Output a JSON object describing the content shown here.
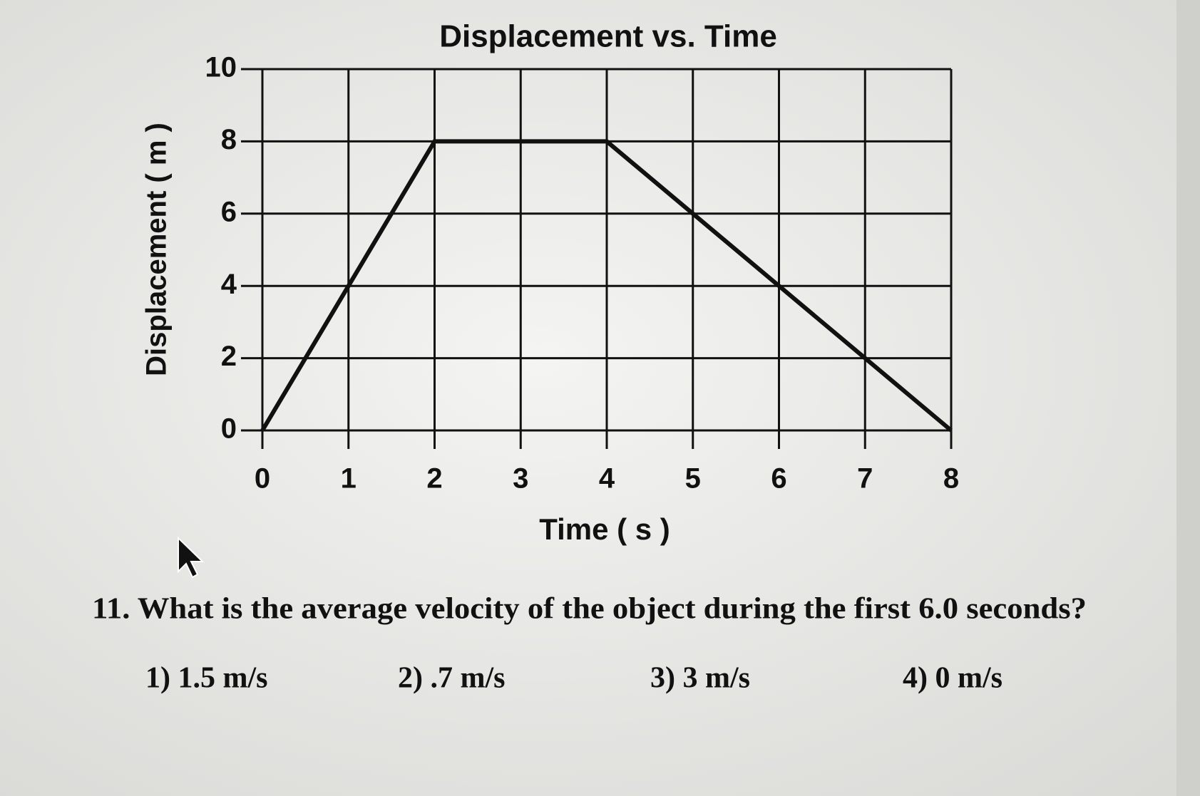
{
  "chart_data": {
    "type": "line",
    "title": "Displacement vs. Time",
    "x_label": "Time ( s )",
    "y_label": "Displacement ( m )",
    "x": [
      0,
      1,
      2,
      3,
      4,
      5,
      6,
      7,
      8
    ],
    "values": [
      0,
      4,
      8,
      8,
      8,
      6,
      4,
      2,
      0
    ],
    "color": "#111111",
    "xlim": [
      0,
      8
    ],
    "xticks": [
      0,
      1,
      2,
      3,
      4,
      5,
      6,
      7,
      8
    ],
    "ylim": [
      0,
      10
    ],
    "yticks": [
      0,
      2,
      4,
      6,
      8,
      10
    ],
    "grid": true
  },
  "question": {
    "text": "11. What is the average velocity of the object during the first 6.0 seconds?",
    "options": [
      "1) 1.5 m/s",
      "2) .7 m/s",
      "3) 3 m/s",
      "4) 0 m/s"
    ]
  }
}
